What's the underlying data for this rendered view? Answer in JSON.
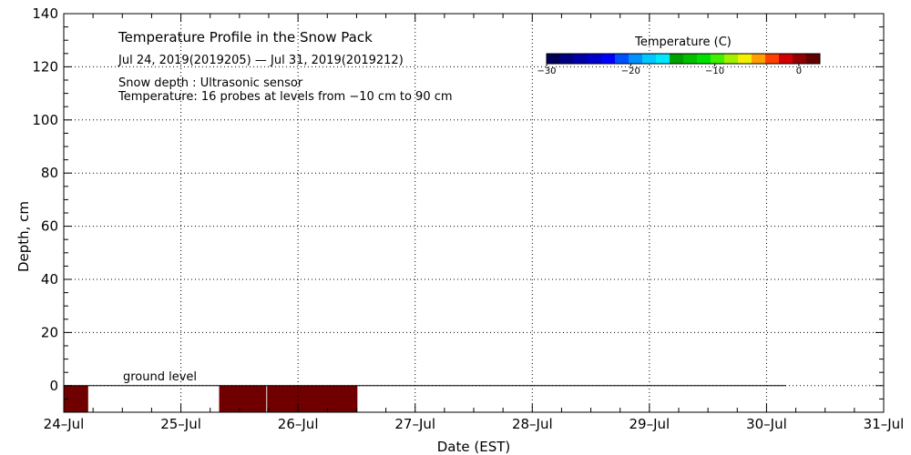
{
  "chart_data": {
    "type": "heatmap",
    "title": "Temperature Profile in the Snow Pack",
    "subtitle": "Jul 24, 2019(2019205) — Jul 31, 2019(2019212)",
    "notes": [
      "Snow depth : Ultrasonic sensor",
      "Temperature: 16 probes at levels from −10 cm to 90 cm"
    ],
    "xlabel": "Date (EST)",
    "ylabel": "Depth, cm",
    "x_ticks": [
      "24–Jul",
      "25–Jul",
      "26–Jul",
      "27–Jul",
      "28–Jul",
      "29–Jul",
      "30–Jul",
      "31–Jul"
    ],
    "xlim": [
      "2019-07-24",
      "2019-07-31"
    ],
    "ylim": [
      -10,
      140
    ],
    "y_ticks": [
      "0",
      "20",
      "40",
      "60",
      "80",
      "100",
      "120",
      "140"
    ],
    "grid": true,
    "ground_level_label": "ground level",
    "ground_level_depth": 0,
    "ground_level_end": "2019-07-30 04:00",
    "colorbar": {
      "title": "Temperature (C)",
      "ticks": [
        "−30",
        "−20",
        "−10",
        "0"
      ],
      "colors": [
        "#00005a",
        "#000080",
        "#0000a8",
        "#0000cc",
        "#0000ff",
        "#0050ff",
        "#0090ff",
        "#00c8ff",
        "#00e8ff",
        "#00a000",
        "#00c000",
        "#00e000",
        "#40f000",
        "#a0f000",
        "#f0f000",
        "#ffa000",
        "#ff4000",
        "#d00000",
        "#900000",
        "#600000"
      ]
    },
    "temperature_cells": [
      {
        "start": "2019-07-24 00:00",
        "end": "2019-07-24 05:00",
        "depth_from": -10,
        "depth_to": 0,
        "color": "#700000"
      },
      {
        "start": "2019-07-25 07:50",
        "end": "2019-07-25 17:30",
        "depth_from": -10,
        "depth_to": 0,
        "color": "#700000"
      },
      {
        "start": "2019-07-25 17:40",
        "end": "2019-07-26 12:10",
        "depth_from": -10,
        "depth_to": 0,
        "color": "#700000"
      }
    ]
  }
}
